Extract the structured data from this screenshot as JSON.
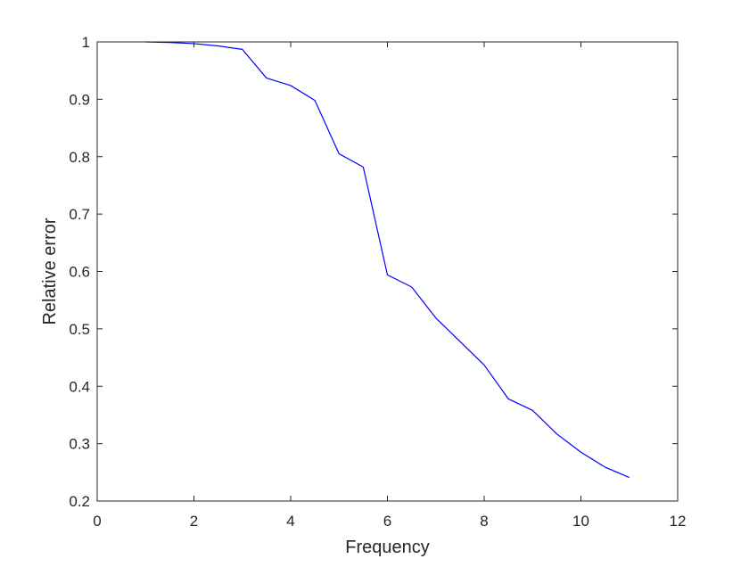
{
  "chart_data": {
    "type": "line",
    "title": "",
    "xlabel": "Frequency",
    "ylabel": "Relative error",
    "xlim": [
      0,
      12
    ],
    "ylim": [
      0.2,
      1
    ],
    "xticks": [
      "0",
      "2",
      "4",
      "6",
      "8",
      "10",
      "12"
    ],
    "yticks": [
      "0.2",
      "0.3",
      "0.4",
      "0.5",
      "0.6",
      "0.7",
      "0.8",
      "0.9",
      "1"
    ],
    "grid": false,
    "legend": "none",
    "series": [
      {
        "color": "#0000ff",
        "x": [
          1,
          1.5,
          2,
          2.5,
          3,
          3.5,
          4,
          4.5,
          5,
          5.5,
          6,
          6.5,
          7,
          7.5,
          8,
          8.5,
          9,
          9.5,
          10,
          10.5,
          11
        ],
        "y": [
          1.0,
          0.999,
          0.997,
          0.993,
          0.987,
          0.937,
          0.924,
          0.898,
          0.805,
          0.782,
          0.594,
          0.573,
          0.519,
          0.478,
          0.437,
          0.378,
          0.358,
          0.317,
          0.285,
          0.259,
          0.241
        ]
      }
    ]
  }
}
